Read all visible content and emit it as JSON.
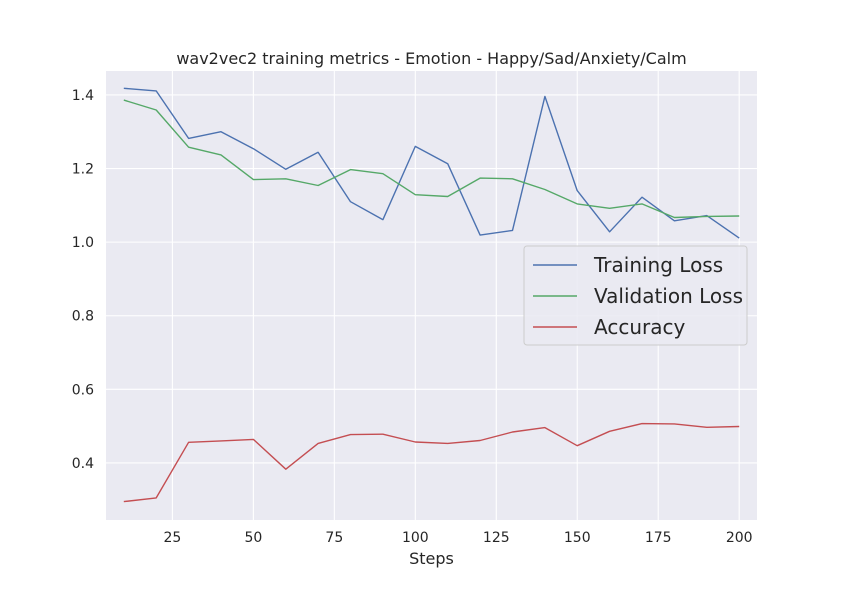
{
  "chart_data": {
    "type": "line",
    "title": "wav2vec2 training metrics - Emotion - Happy/Sad/Anxiety/Calm",
    "xlabel": "Steps",
    "ylabel": "",
    "x": [
      10,
      20,
      30,
      40,
      50,
      60,
      70,
      80,
      90,
      100,
      110,
      120,
      130,
      140,
      150,
      160,
      170,
      180,
      190,
      200
    ],
    "xlim": [
      4.5,
      205.5
    ],
    "ylim": [
      0.245,
      1.465
    ],
    "xticks": [
      25,
      50,
      75,
      100,
      125,
      150,
      175,
      200
    ],
    "yticks": [
      0.4,
      0.6,
      0.8,
      1.0,
      1.2,
      1.4
    ],
    "xtick_labels": [
      "25",
      "50",
      "75",
      "100",
      "125",
      "150",
      "175",
      "200"
    ],
    "ytick_labels": [
      "0.4",
      "0.6",
      "0.8",
      "1.0",
      "1.2",
      "1.4"
    ],
    "grid": true,
    "legend_position": "center-right",
    "background": "#eaeaf2",
    "series": [
      {
        "name": "Training Loss",
        "color": "#4c72b0",
        "values": [
          1.418,
          1.411,
          1.282,
          1.3,
          1.254,
          1.198,
          1.244,
          1.11,
          1.061,
          1.26,
          1.213,
          1.019,
          1.032,
          1.396,
          1.14,
          1.028,
          1.122,
          1.058,
          1.072,
          1.011
        ]
      },
      {
        "name": "Validation Loss",
        "color": "#55a868",
        "values": [
          1.386,
          1.359,
          1.258,
          1.237,
          1.17,
          1.172,
          1.154,
          1.197,
          1.186,
          1.129,
          1.124,
          1.174,
          1.172,
          1.143,
          1.104,
          1.092,
          1.104,
          1.067,
          1.07,
          1.071
        ]
      },
      {
        "name": "Accuracy",
        "color": "#c44e52",
        "values": [
          0.295,
          0.305,
          0.456,
          0.46,
          0.464,
          0.383,
          0.453,
          0.477,
          0.478,
          0.457,
          0.453,
          0.461,
          0.484,
          0.496,
          0.447,
          0.486,
          0.507,
          0.506,
          0.497,
          0.499
        ]
      }
    ]
  }
}
